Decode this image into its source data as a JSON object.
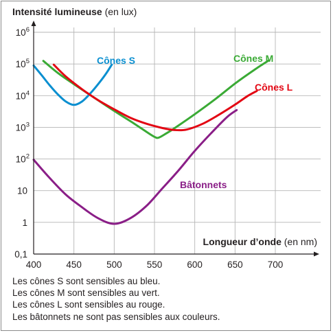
{
  "chart_data": {
    "type": "line",
    "title": "",
    "ylabel": "Intensité lumineuse",
    "ylabel_unit": "(en lux)",
    "xlabel": "Longueur d’onde",
    "xlabel_unit": "(en nm)",
    "x_scale": "linear",
    "y_scale": "log",
    "xlim": [
      400,
      700
    ],
    "ylim": [
      0.1,
      1000000
    ],
    "grid": true,
    "x_ticks": [
      {
        "value": 400,
        "label": "400"
      },
      {
        "value": 450,
        "label": "450"
      },
      {
        "value": 500,
        "label": "500"
      },
      {
        "value": 550,
        "label": "550"
      },
      {
        "value": 600,
        "label": "600"
      },
      {
        "value": 650,
        "label": "650"
      },
      {
        "value": 700,
        "label": "700"
      }
    ],
    "y_ticks": [
      {
        "value": 0.1,
        "label": "0,1"
      },
      {
        "value": 1,
        "label": "1"
      },
      {
        "value": 10,
        "label": "10"
      },
      {
        "value": 100,
        "base": "10",
        "exp": "2"
      },
      {
        "value": 1000,
        "base": "10",
        "exp": "3"
      },
      {
        "value": 10000,
        "base": "10",
        "exp": "4"
      },
      {
        "value": 100000,
        "base": "10",
        "exp": "5"
      },
      {
        "value": 1000000,
        "base": "10",
        "exp": "6"
      }
    ],
    "series": [
      {
        "name": "Cônes S",
        "color": "#0a8fd0",
        "x": [
          400,
          410,
          420,
          430,
          440,
          450,
          460,
          470,
          480,
          490,
          497
        ],
        "y": [
          89000,
          44000,
          21000,
          11000,
          6500,
          5100,
          6500,
          11500,
          23000,
          50000,
          95000
        ]
      },
      {
        "name": "Cônes M",
        "color": "#3aaa35",
        "x": [
          412,
          430,
          450,
          475,
          500,
          525,
          540,
          550,
          555,
          565,
          580,
          600,
          625,
          650,
          675,
          692
        ],
        "y": [
          125000,
          52000,
          23000,
          8700,
          3300,
          1300,
          720,
          500,
          470,
          650,
          1150,
          2600,
          7600,
          24000,
          68000,
          130000
        ]
      },
      {
        "name": "Cônes L",
        "color": "#e30613",
        "x": [
          425,
          440,
          460,
          480,
          500,
          520,
          540,
          560,
          575,
          590,
          610,
          630,
          650,
          665,
          677
        ],
        "y": [
          95000,
          40000,
          16000,
          7200,
          3700,
          2000,
          1300,
          950,
          820,
          850,
          1300,
          2500,
          5200,
          9500,
          14000
        ]
      },
      {
        "name": "Bâtonnets",
        "color": "#8a1e87",
        "x": [
          400,
          420,
          440,
          460,
          480,
          500,
          520,
          540,
          560,
          580,
          600,
          620,
          640,
          652
        ],
        "y": [
          95,
          25,
          7.5,
          3,
          1.35,
          0.9,
          1.35,
          3.3,
          12,
          44,
          180,
          640,
          2100,
          3500
        ]
      }
    ]
  },
  "captions": [
    "Les cônes S sont sensibles au bleu.",
    "Les cônes M sont sensibles au vert.",
    "Les cônes L sont sensibles au rouge.",
    "Les bâtonnets ne sont pas sensibles aux couleurs."
  ],
  "colors": {
    "axis": "#231f20",
    "grid": "#b5b5b5",
    "text": "#231f20"
  }
}
